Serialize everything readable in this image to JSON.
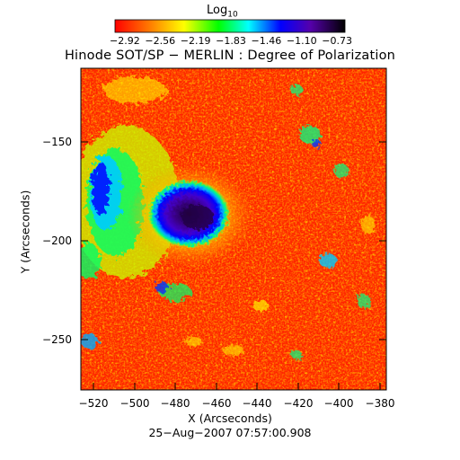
{
  "colorbar": {
    "label": "Log",
    "label_sub": "10",
    "ticks": [
      "−2.92",
      "−2.56",
      "−2.19",
      "−1.83",
      "−1.46",
      "−1.10",
      "−0.73"
    ],
    "colors": [
      "#ff0000",
      "#ff8800",
      "#ffff00",
      "#00ff00",
      "#00ffff",
      "#0000ff",
      "#6600cc",
      "#000000"
    ]
  },
  "title": "Hinode SOT/SP − MERLIN : Degree of Polarization",
  "x_axis": {
    "label": "X (Arcseconds)",
    "ticks": [
      "−520",
      "−500",
      "−480",
      "−460",
      "−440",
      "−420",
      "−400",
      "−380"
    ],
    "range": [
      -526,
      -376
    ]
  },
  "y_axis": {
    "label": "Y (Arcseconds)",
    "ticks": [
      "−150",
      "−200",
      "−250"
    ],
    "range": [
      -276,
      -116
    ]
  },
  "timestamp": "25−Aug−2007 07:57:00.908",
  "map": {
    "sunspot_center_arcsec": [
      -468,
      -187
    ],
    "background": "#ff2a00"
  }
}
